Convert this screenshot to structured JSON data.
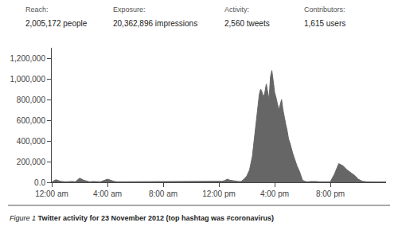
{
  "chart_data": {
    "type": "area",
    "title": "Figure 1",
    "subtitle": "Twitter activity for 23 November 2012 (top hashtag was #coronavirus)",
    "annotations": [
      "Reach:",
      "2,005,172 people",
      "Exposure:",
      "20,362,896 impressions",
      "Activity:",
      "2,560 tweets",
      "Contributors:",
      "1,615 users"
    ],
    "x": [
      0.0,
      0.3,
      0.5,
      0.7,
      1.0,
      1.3,
      1.5,
      1.7,
      2.0,
      2.3,
      2.5,
      2.7,
      3.0,
      3.5,
      4.0,
      4.3,
      4.5,
      4.7,
      5.0,
      5.5,
      6.0,
      6.5,
      7.0,
      7.5,
      8.0,
      8.5,
      9.0,
      9.5,
      10.0,
      10.5,
      11.0,
      11.5,
      12.0,
      12.2,
      12.4,
      12.6,
      12.8,
      13.0,
      13.2,
      13.4,
      13.6,
      13.8,
      14.0,
      14.2,
      14.4,
      14.5,
      14.6,
      14.7,
      14.8,
      14.9,
      15.0,
      15.1,
      15.2,
      15.3,
      15.4,
      15.5,
      15.6,
      15.7,
      15.8,
      15.9,
      16.0,
      16.1,
      16.2,
      16.3,
      16.4,
      16.5,
      16.6,
      16.7,
      16.8,
      16.9,
      17.0,
      17.1,
      17.2,
      17.3,
      17.4,
      17.5,
      17.6,
      17.8,
      18.0,
      18.2,
      18.4,
      18.6,
      18.8,
      19.0,
      19.2,
      19.4,
      19.6,
      19.8,
      20.0,
      20.3,
      20.6,
      20.9,
      21.2,
      21.5,
      21.8,
      22.0,
      22.3,
      22.6,
      23.0,
      23.5,
      24.0
    ],
    "values": [
      3000,
      25000,
      15000,
      8000,
      5000,
      10000,
      8000,
      5000,
      40000,
      20000,
      10000,
      5000,
      8000,
      5000,
      30000,
      15000,
      8000,
      5000,
      5000,
      5000,
      5000,
      5000,
      5000,
      5000,
      5000,
      5000,
      5000,
      5000,
      5000,
      5000,
      5000,
      5000,
      8000,
      10000,
      15000,
      30000,
      20000,
      15000,
      10000,
      8000,
      8000,
      30000,
      60000,
      120000,
      250000,
      380000,
      500000,
      620000,
      750000,
      850000,
      900000,
      870000,
      820000,
      870000,
      950000,
      870000,
      800000,
      1020000,
      1080000,
      980000,
      870000,
      820000,
      760000,
      700000,
      750000,
      800000,
      700000,
      620000,
      560000,
      500000,
      420000,
      380000,
      320000,
      280000,
      240000,
      200000,
      160000,
      100000,
      20000,
      8000,
      5000,
      8000,
      10000,
      8000,
      5000,
      5000,
      5000,
      5000,
      5000,
      80000,
      180000,
      160000,
      120000,
      90000,
      60000,
      30000,
      10000,
      5000,
      5000,
      5000,
      3000
    ],
    "color": "#666666",
    "xlim": [
      0,
      24
    ],
    "xticks": [
      {
        "value": 0,
        "label": "12:00 am"
      },
      {
        "value": 4,
        "label": "4:00 am"
      },
      {
        "value": 8,
        "label": "8:00 am"
      },
      {
        "value": 12,
        "label": "12:00 pm"
      },
      {
        "value": 16,
        "label": "4:00 pm"
      },
      {
        "value": 20,
        "label": "8:00 pm"
      }
    ],
    "ylim": [
      0,
      1300000
    ],
    "yticks": [
      {
        "value": 0,
        "label": "0.0"
      },
      {
        "value": 200000,
        "label": "200,000"
      },
      {
        "value": 400000,
        "label": "400,000"
      },
      {
        "value": 600000,
        "label": "600,000"
      },
      {
        "value": 800000,
        "label": "800,000"
      },
      {
        "value": 1000000,
        "label": "1,000,000"
      },
      {
        "value": 1200000,
        "label": "1,200,000"
      }
    ],
    "grid": false
  }
}
